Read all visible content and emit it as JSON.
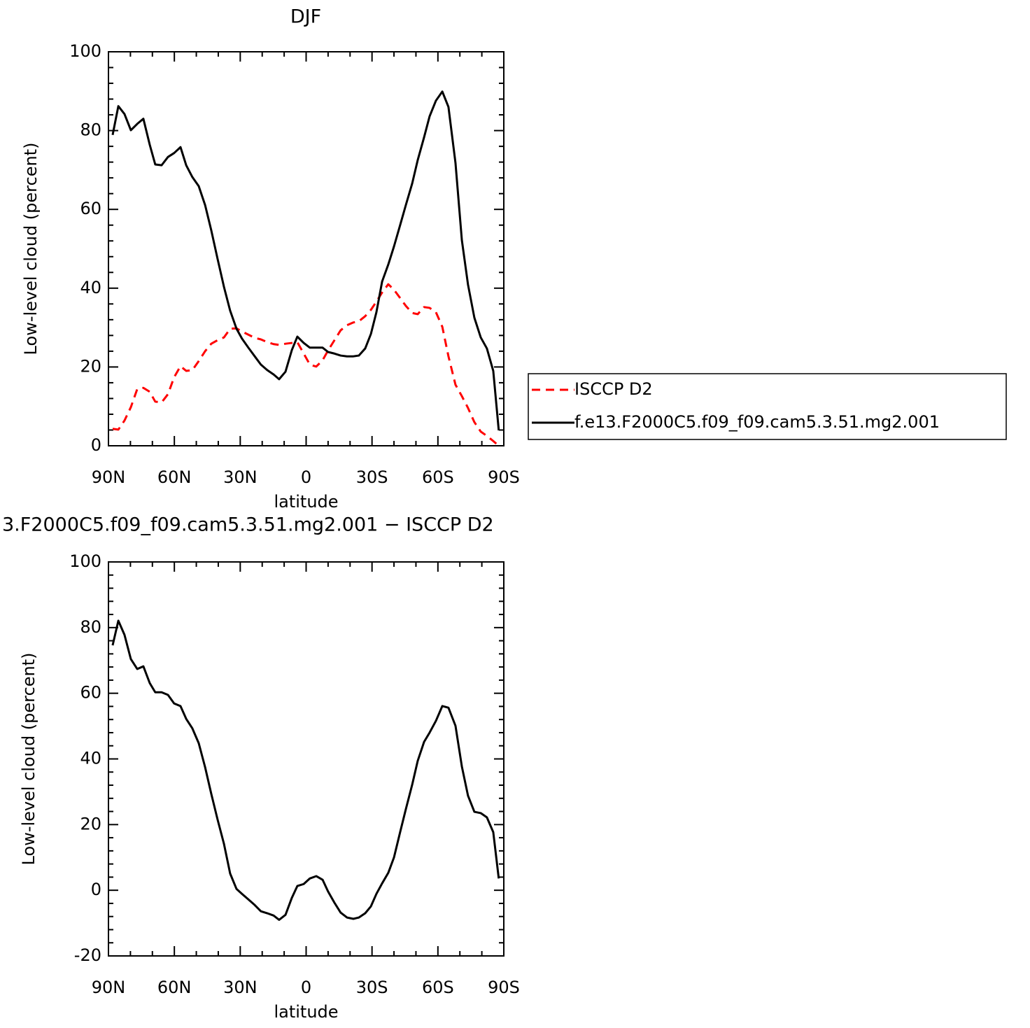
{
  "chart_data": [
    {
      "type": "line",
      "title": "DJF",
      "xlabel": "latitude",
      "ylabel": "Low-level cloud (percent)",
      "x": [
        88.1,
        85.5,
        82.7,
        79.8,
        76.9,
        74.1,
        71.2,
        68.7,
        65.8,
        62.9,
        60.1,
        57.2,
        54.6,
        51.8,
        48.9,
        46.0,
        43.2,
        40.3,
        37.4,
        34.6,
        31.7,
        29.2,
        26.3,
        23.4,
        20.6,
        17.7,
        14.8,
        12.3,
        9.4,
        6.5,
        4.0,
        1.1,
        -1.7,
        -4.6,
        -7.5,
        -10.0,
        -12.9,
        -15.7,
        -18.6,
        -21.5,
        -24.0,
        -26.9,
        -29.5,
        -32.0,
        -34.6,
        -37.4,
        -40.0,
        -42.8,
        -45.4,
        -48.3,
        -50.8,
        -53.7,
        -56.2,
        -59.1,
        -62.0,
        -64.8,
        -68.0,
        -70.9,
        -73.7,
        -76.6,
        -79.5,
        -82.3,
        -85.2,
        -87.7
      ],
      "series": [
        {
          "name": "ISCCP D2",
          "color": "#ff0000",
          "dash": true,
          "values": [
            4.3,
            4.1,
            6.4,
            9.8,
            14.4,
            14.7,
            13.7,
            11.2,
            11.0,
            13.1,
            17.4,
            20.2,
            19.0,
            19.2,
            21.5,
            24.0,
            25.9,
            26.8,
            27.5,
            29.7,
            29.8,
            29.0,
            28.2,
            27.4,
            27.0,
            26.3,
            25.8,
            25.6,
            25.9,
            26.1,
            26.3,
            23.4,
            20.6,
            20.1,
            21.7,
            24.2,
            26.8,
            29.3,
            30.6,
            31.3,
            31.6,
            32.9,
            34.5,
            36.6,
            38.9,
            41.0,
            39.6,
            37.5,
            35.5,
            33.7,
            33.4,
            35.2,
            35.0,
            33.9,
            30.2,
            22.7,
            15.5,
            12.6,
            9.6,
            6.0,
            3.6,
            2.5,
            1.2,
            0
          ]
        },
        {
          "name": "f.e13.F2000C5.f09_f09.cam5.3.51.mg2.001",
          "color": "#000000",
          "dash": false,
          "values": [
            78.9,
            86.2,
            84.2,
            80.1,
            81.7,
            83.0,
            76.4,
            71.4,
            71.2,
            73.3,
            74.3,
            75.8,
            71.2,
            68.2,
            65.9,
            61.1,
            54.7,
            47.4,
            40.3,
            34.3,
            29.7,
            27.2,
            24.9,
            22.7,
            20.6,
            19.2,
            18.1,
            16.9,
            18.8,
            24.3,
            27.7,
            26.1,
            24.9,
            24.9,
            24.9,
            23.8,
            23.4,
            22.9,
            22.7,
            22.7,
            22.9,
            24.7,
            28.4,
            33.9,
            41.7,
            46.0,
            50.6,
            56.0,
            61.1,
            66.6,
            72.5,
            78.3,
            83.6,
            87.6,
            89.9,
            86.0,
            71.8,
            52.2,
            40.9,
            32.5,
            27.5,
            24.7,
            19.0,
            3.9
          ]
        }
      ],
      "xlim": [
        90,
        -90
      ],
      "xticks": [
        {
          "value": 90,
          "label": "90N"
        },
        {
          "value": 60,
          "label": "60N"
        },
        {
          "value": 30,
          "label": "30N"
        },
        0,
        {
          "value": -30,
          "label": "30S"
        },
        {
          "value": -60,
          "label": "60S"
        },
        {
          "value": -90,
          "label": "90S"
        }
      ],
      "ylim": [
        0,
        100
      ],
      "yticks": [
        0,
        20,
        40,
        60,
        80,
        100
      ],
      "legend": "right"
    },
    {
      "type": "line",
      "title": "3.F2000C5.f09_f09.cam5.3.51.mg2.001 − ISCCP D2",
      "xlabel": "latitude",
      "ylabel": "Low-level cloud (percent)",
      "x": [
        88.1,
        85.5,
        82.7,
        79.8,
        76.9,
        74.1,
        71.2,
        68.7,
        65.8,
        62.9,
        60.1,
        57.2,
        54.6,
        51.8,
        48.9,
        46.0,
        43.2,
        40.3,
        37.4,
        34.6,
        31.7,
        29.2,
        26.3,
        23.4,
        20.6,
        17.7,
        14.8,
        12.3,
        9.4,
        6.5,
        4.0,
        1.1,
        -1.7,
        -4.6,
        -7.5,
        -10.0,
        -12.9,
        -15.7,
        -18.6,
        -21.5,
        -24.0,
        -26.9,
        -29.5,
        -32.0,
        -34.6,
        -37.4,
        -40.0,
        -42.8,
        -45.4,
        -48.3,
        -50.8,
        -53.7,
        -56.2,
        -59.1,
        -62.0,
        -64.8,
        -68.0,
        -70.9,
        -73.7,
        -76.6,
        -79.5,
        -82.3,
        -85.2,
        -87.7
      ],
      "series": [
        {
          "color": "#000000",
          "dash": false,
          "values": [
            74.6,
            82.1,
            77.8,
            70.4,
            67.4,
            68.2,
            63.1,
            60.3,
            60.3,
            59.5,
            56.9,
            56.1,
            52.2,
            49.3,
            44.8,
            37.5,
            29.4,
            21.5,
            14.1,
            5.1,
            0.4,
            -1.1,
            -2.8,
            -4.5,
            -6.4,
            -7.0,
            -7.7,
            -9.0,
            -7.5,
            -2.3,
            1.3,
            1.9,
            3.6,
            4.3,
            3.2,
            -0.4,
            -3.8,
            -6.8,
            -8.3,
            -8.7,
            -8.3,
            -7.0,
            -4.9,
            -1.1,
            2.1,
            5.3,
            10.0,
            17.7,
            24.7,
            32.2,
            39.4,
            45.2,
            48.0,
            51.6,
            56.1,
            55.6,
            50.1,
            37.7,
            28.8,
            23.9,
            23.5,
            22.2,
            17.7,
            3.6
          ]
        }
      ],
      "xlim": [
        90,
        -90
      ],
      "xticks": [
        {
          "value": 90,
          "label": "90N"
        },
        {
          "value": 60,
          "label": "60N"
        },
        {
          "value": 30,
          "label": "30N"
        },
        0,
        {
          "value": -30,
          "label": "30S"
        },
        {
          "value": -60,
          "label": "60S"
        },
        {
          "value": -90,
          "label": "90S"
        }
      ],
      "ylim": [
        -20,
        100
      ],
      "yticks": [
        -20,
        0,
        20,
        40,
        60,
        80,
        100
      ]
    }
  ]
}
